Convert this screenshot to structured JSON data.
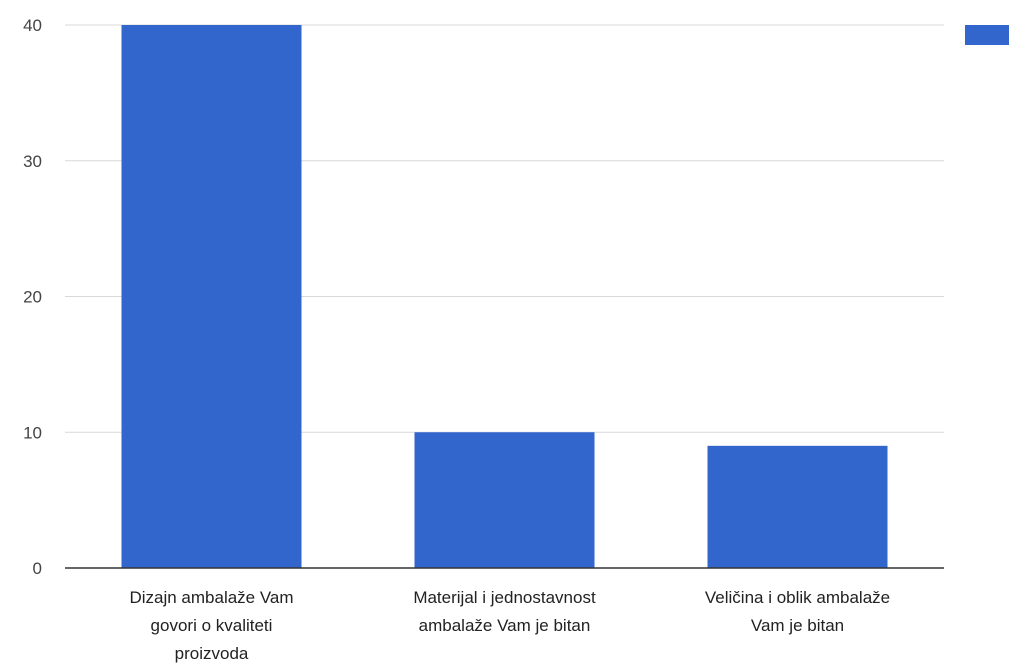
{
  "chart_data": {
    "type": "bar",
    "categories": [
      [
        "Dizajn ambalaže Vam",
        "govori o kvaliteti",
        "proizvoda"
      ],
      [
        "Materijal i jednostavnost",
        "ambalaže Vam je bitan"
      ],
      [
        "Veličina i oblik ambalaže",
        "Vam je bitan"
      ]
    ],
    "values": [
      40,
      10,
      9
    ],
    "yticks": [
      0,
      10,
      20,
      30,
      40
    ],
    "ylim": [
      0,
      40
    ],
    "title": "",
    "xlabel": "",
    "ylabel": "",
    "grid": true,
    "legend": {
      "placement": "top-right",
      "entries": [
        ""
      ]
    },
    "colors": {
      "bar": "#3366cc",
      "grid": "#d9d9d9",
      "axis": "#333333"
    }
  }
}
